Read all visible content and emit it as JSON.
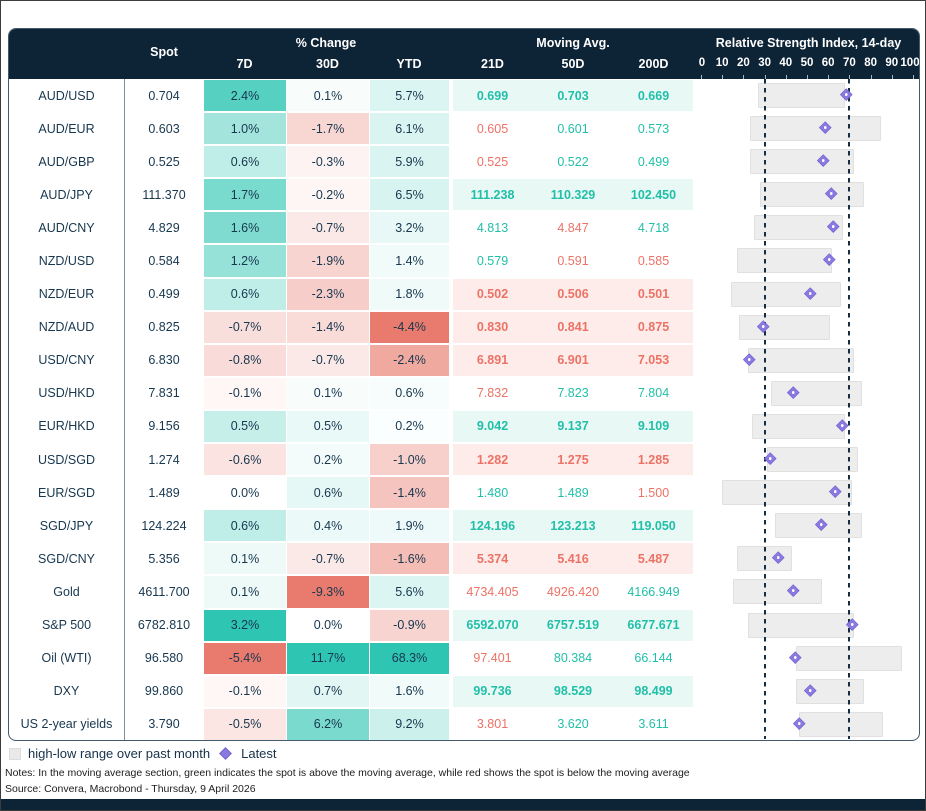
{
  "header": {
    "spot_label": "Spot",
    "pct_change_label": "% Change",
    "col_7d": "7D",
    "col_30d": "30D",
    "col_ytd": "YTD",
    "moving_avg_label": "Moving Avg.",
    "col_21d": "21D",
    "col_50d": "50D",
    "col_200d": "200D",
    "rsi_label": "Relative Strength Index, 14-day",
    "rsi_axis_ticks": [
      0,
      10,
      20,
      30,
      40,
      50,
      60,
      70,
      80,
      90,
      100
    ]
  },
  "legend": {
    "range_label": "high-low range over past month",
    "latest_label": "Latest"
  },
  "notes": "Notes: In the moving average section, green indicates the spot is above the moving average, while red shows the spot is below the moving average",
  "source": "Source: Convera, Macrobond - Thursday, 9 April 2026",
  "colors": {
    "header_bg": "#0d2336",
    "teal_full": "#2fc5b3",
    "red_full": "#e87b6d",
    "text_navy": "#17374f",
    "ma_green_text": "#21bfa8",
    "ma_red_text": "#ec7266",
    "ma_green_row_bg": "#e7f8f5",
    "ma_red_row_bg": "#fdece9",
    "rsi_bar_fill": "#ededed",
    "diamond_purple": "#8878e0",
    "dashed_line": "#152c42"
  },
  "chart_data": {
    "type": "table",
    "title": "FX and markets dashboard with % change heatmap, moving averages and 14-day RSI",
    "rsi_axis": {
      "min": 0,
      "max": 100,
      "lower_band": 30,
      "upper_band": 70
    },
    "columns": [
      "",
      "Spot",
      "7D",
      "30D",
      "YTD",
      "21D",
      "50D",
      "200D",
      "RSI 14-day"
    ],
    "rows": [
      {
        "name": "AUD/USD",
        "spot": "0.704",
        "pct": [
          2.4,
          0.1,
          5.7
        ],
        "ma": [
          "0.699",
          "0.703",
          "0.669"
        ],
        "trend": [
          "above",
          "above",
          "above"
        ],
        "rsi": {
          "low": 27,
          "high": 68,
          "latest": 69
        }
      },
      {
        "name": "AUD/EUR",
        "spot": "0.603",
        "pct": [
          1.0,
          -1.7,
          6.1
        ],
        "ma": [
          "0.605",
          "0.601",
          "0.573"
        ],
        "trend": [
          "below",
          "above",
          "above"
        ],
        "rsi": {
          "low": 23,
          "high": 85,
          "latest": 59
        }
      },
      {
        "name": "AUD/GBP",
        "spot": "0.525",
        "pct": [
          0.6,
          -0.3,
          5.9
        ],
        "ma": [
          "0.525",
          "0.522",
          "0.499"
        ],
        "trend": [
          "below",
          "above",
          "above"
        ],
        "rsi": {
          "low": 23,
          "high": 72,
          "latest": 58
        }
      },
      {
        "name": "AUD/JPY",
        "spot": "111.370",
        "pct": [
          1.7,
          -0.2,
          6.5
        ],
        "ma": [
          "111.238",
          "110.329",
          "102.450"
        ],
        "trend": [
          "above",
          "above",
          "above"
        ],
        "rsi": {
          "low": 28,
          "high": 77,
          "latest": 62
        }
      },
      {
        "name": "AUD/CNY",
        "spot": "4.829",
        "pct": [
          1.6,
          -0.7,
          3.2
        ],
        "ma": [
          "4.813",
          "4.847",
          "4.718"
        ],
        "trend": [
          "above",
          "below",
          "above"
        ],
        "rsi": {
          "low": 25,
          "high": 67,
          "latest": 63
        }
      },
      {
        "name": "NZD/USD",
        "spot": "0.584",
        "pct": [
          1.2,
          -1.9,
          1.4
        ],
        "ma": [
          "0.579",
          "0.591",
          "0.585"
        ],
        "trend": [
          "above",
          "below",
          "below"
        ],
        "rsi": {
          "low": 17,
          "high": 62,
          "latest": 61
        }
      },
      {
        "name": "NZD/EUR",
        "spot": "0.499",
        "pct": [
          0.6,
          -2.3,
          1.8
        ],
        "ma": [
          "0.502",
          "0.506",
          "0.501"
        ],
        "trend": [
          "below",
          "below",
          "below"
        ],
        "rsi": {
          "low": 14,
          "high": 66,
          "latest": 52
        }
      },
      {
        "name": "NZD/AUD",
        "spot": "0.825",
        "pct": [
          -0.7,
          -1.4,
          -4.4
        ],
        "ma": [
          "0.830",
          "0.841",
          "0.875"
        ],
        "trend": [
          "below",
          "below",
          "below"
        ],
        "rsi": {
          "low": 18,
          "high": 61,
          "latest": 30
        }
      },
      {
        "name": "USD/CNY",
        "spot": "6.830",
        "pct": [
          -0.8,
          -0.7,
          -2.4
        ],
        "ma": [
          "6.891",
          "6.901",
          "7.053"
        ],
        "trend": [
          "below",
          "below",
          "below"
        ],
        "rsi": {
          "low": 22,
          "high": 72,
          "latest": 23
        }
      },
      {
        "name": "USD/HKD",
        "spot": "7.831",
        "pct": [
          -0.1,
          0.1,
          0.6
        ],
        "ma": [
          "7.832",
          "7.823",
          "7.804"
        ],
        "trend": [
          "below",
          "above",
          "above"
        ],
        "rsi": {
          "low": 33,
          "high": 76,
          "latest": 44
        }
      },
      {
        "name": "EUR/HKD",
        "spot": "9.156",
        "pct": [
          0.5,
          0.5,
          0.2
        ],
        "ma": [
          "9.042",
          "9.137",
          "9.109"
        ],
        "trend": [
          "above",
          "above",
          "above"
        ],
        "rsi": {
          "low": 24,
          "high": 68,
          "latest": 67
        }
      },
      {
        "name": "USD/SGD",
        "spot": "1.274",
        "pct": [
          -0.6,
          0.2,
          -1.0
        ],
        "ma": [
          "1.282",
          "1.275",
          "1.285"
        ],
        "trend": [
          "below",
          "below",
          "below"
        ],
        "rsi": {
          "low": 31,
          "high": 74,
          "latest": 33
        }
      },
      {
        "name": "EUR/SGD",
        "spot": "1.489",
        "pct": [
          0.0,
          0.6,
          -1.4
        ],
        "ma": [
          "1.480",
          "1.489",
          "1.500"
        ],
        "trend": [
          "above",
          "above",
          "below"
        ],
        "rsi": {
          "low": 10,
          "high": 71,
          "latest": 64
        }
      },
      {
        "name": "SGD/JPY",
        "spot": "124.224",
        "pct": [
          0.6,
          0.4,
          1.9
        ],
        "ma": [
          "124.196",
          "123.213",
          "119.050"
        ],
        "trend": [
          "above",
          "above",
          "above"
        ],
        "rsi": {
          "low": 35,
          "high": 76,
          "latest": 57
        }
      },
      {
        "name": "SGD/CNY",
        "spot": "5.356",
        "pct": [
          0.1,
          -0.7,
          -1.6
        ],
        "ma": [
          "5.374",
          "5.416",
          "5.487"
        ],
        "trend": [
          "below",
          "below",
          "below"
        ],
        "rsi": {
          "low": 17,
          "high": 43,
          "latest": 37
        }
      },
      {
        "name": "Gold",
        "spot": "4611.700",
        "pct": [
          0.1,
          -9.3,
          5.6
        ],
        "ma": [
          "4734.405",
          "4926.420",
          "4166.949"
        ],
        "trend": [
          "below",
          "below",
          "above"
        ],
        "rsi": {
          "low": 15,
          "high": 57,
          "latest": 44
        }
      },
      {
        "name": "S&P 500",
        "spot": "6782.810",
        "pct": [
          3.2,
          0.0,
          -0.9
        ],
        "ma": [
          "6592.070",
          "6757.519",
          "6677.671"
        ],
        "trend": [
          "above",
          "above",
          "above"
        ],
        "rsi": {
          "low": 22,
          "high": 72,
          "latest": 72
        }
      },
      {
        "name": "Oil (WTI)",
        "spot": "96.580",
        "pct": [
          -5.4,
          11.7,
          68.3
        ],
        "ma": [
          "97.401",
          "80.384",
          "66.144"
        ],
        "trend": [
          "below",
          "above",
          "above"
        ],
        "rsi": {
          "low": 45,
          "high": 95,
          "latest": 45
        }
      },
      {
        "name": "DXY",
        "spot": "99.860",
        "pct": [
          -0.1,
          0.7,
          1.6
        ],
        "ma": [
          "99.736",
          "98.529",
          "98.499"
        ],
        "trend": [
          "above",
          "above",
          "above"
        ],
        "rsi": {
          "low": 45,
          "high": 77,
          "latest": 52
        }
      },
      {
        "name": "US 2-year yields",
        "spot": "3.790",
        "pct": [
          -0.5,
          6.2,
          9.2
        ],
        "ma": [
          "3.801",
          "3.620",
          "3.611"
        ],
        "trend": [
          "below",
          "above",
          "above"
        ],
        "rsi": {
          "low": 46,
          "high": 86,
          "latest": 47
        }
      }
    ]
  }
}
